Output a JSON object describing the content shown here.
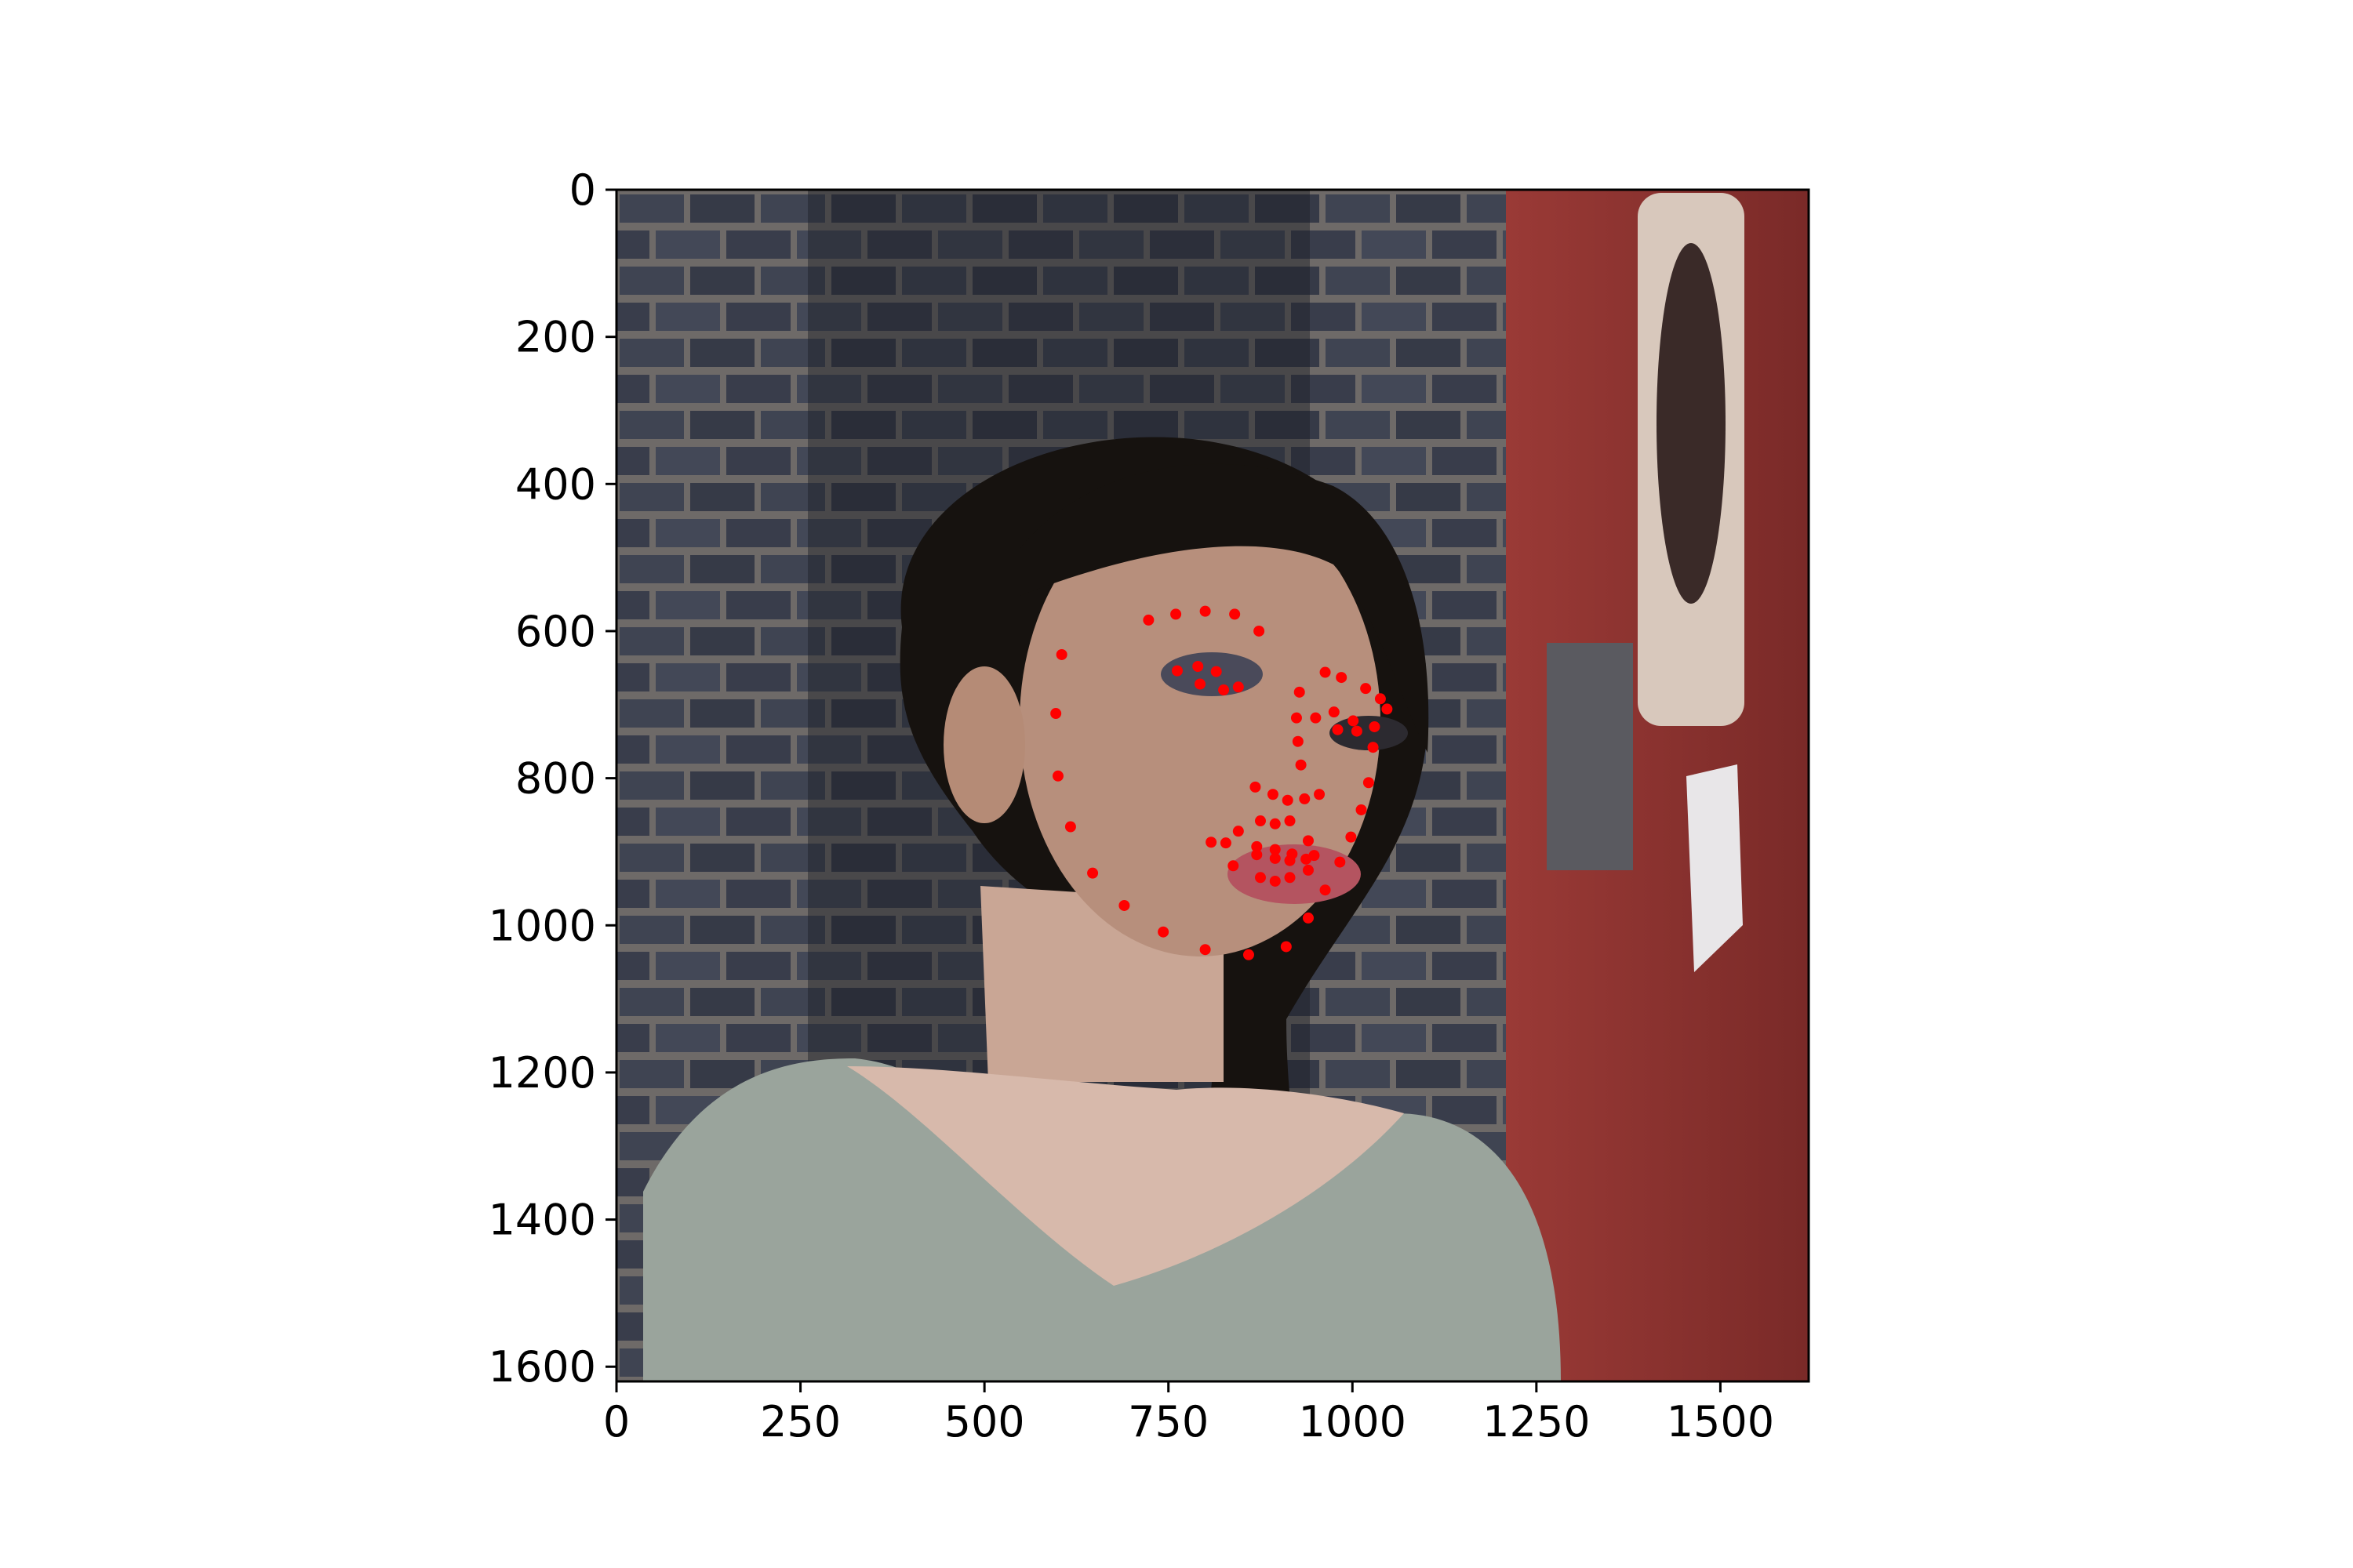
{
  "chart_data": {
    "type": "scatter",
    "title": "",
    "xlabel": "",
    "ylabel": "",
    "xlim": [
      0,
      1620
    ],
    "ylim": [
      1620,
      0
    ],
    "grid": false,
    "legend": "none",
    "background": "photograph of a young woman with dark hair and dark eye makeup leaning against a grey brick wall, red painted door on the right",
    "x_ticks": [
      0,
      250,
      500,
      750,
      1000,
      1250,
      1500
    ],
    "x_tick_labels": [
      "0",
      "250",
      "500",
      "750",
      "1000",
      "1250",
      "1500"
    ],
    "y_ticks": [
      0,
      200,
      400,
      600,
      800,
      1000,
      1200,
      1400,
      1600
    ],
    "y_tick_labels": [
      "0",
      "200",
      "400",
      "600",
      "800",
      "1000",
      "1200",
      "1400",
      "1600"
    ],
    "series": [
      {
        "name": "facial landmarks",
        "marker_color": "#ff0000",
        "points": [
          [
            605,
            632
          ],
          [
            597,
            712
          ],
          [
            600,
            797
          ],
          [
            617,
            866
          ],
          [
            647,
            929
          ],
          [
            690,
            973
          ],
          [
            743,
            1009
          ],
          [
            800,
            1033
          ],
          [
            859,
            1040
          ],
          [
            910,
            1029
          ],
          [
            940,
            990
          ],
          [
            963,
            952
          ],
          [
            983,
            914
          ],
          [
            998,
            880
          ],
          [
            1012,
            843
          ],
          [
            1022,
            806
          ],
          [
            1028,
            758
          ],
          [
            723,
            585
          ],
          [
            760,
            577
          ],
          [
            800,
            573
          ],
          [
            840,
            577
          ],
          [
            873,
            600
          ],
          [
            963,
            656
          ],
          [
            985,
            663
          ],
          [
            1018,
            678
          ],
          [
            1038,
            692
          ],
          [
            1047,
            706
          ],
          [
            928,
            683
          ],
          [
            924,
            718
          ],
          [
            926,
            750
          ],
          [
            930,
            782
          ],
          [
            868,
            812
          ],
          [
            892,
            822
          ],
          [
            912,
            830
          ],
          [
            935,
            828
          ],
          [
            955,
            822
          ],
          [
            762,
            654
          ],
          [
            790,
            648
          ],
          [
            815,
            655
          ],
          [
            845,
            676
          ],
          [
            825,
            680
          ],
          [
            793,
            672
          ],
          [
            950,
            718
          ],
          [
            975,
            710
          ],
          [
            1001,
            722
          ],
          [
            1030,
            730
          ],
          [
            1006,
            736
          ],
          [
            980,
            734
          ],
          [
            808,
            887
          ],
          [
            845,
            872
          ],
          [
            875,
            858
          ],
          [
            895,
            862
          ],
          [
            915,
            858
          ],
          [
            940,
            885
          ],
          [
            948,
            905
          ],
          [
            940,
            925
          ],
          [
            915,
            935
          ],
          [
            895,
            940
          ],
          [
            875,
            935
          ],
          [
            838,
            919
          ],
          [
            828,
            888
          ],
          [
            870,
            893
          ],
          [
            895,
            897
          ],
          [
            918,
            903
          ],
          [
            937,
            910
          ],
          [
            915,
            912
          ],
          [
            895,
            909
          ],
          [
            870,
            904
          ]
        ]
      }
    ]
  }
}
